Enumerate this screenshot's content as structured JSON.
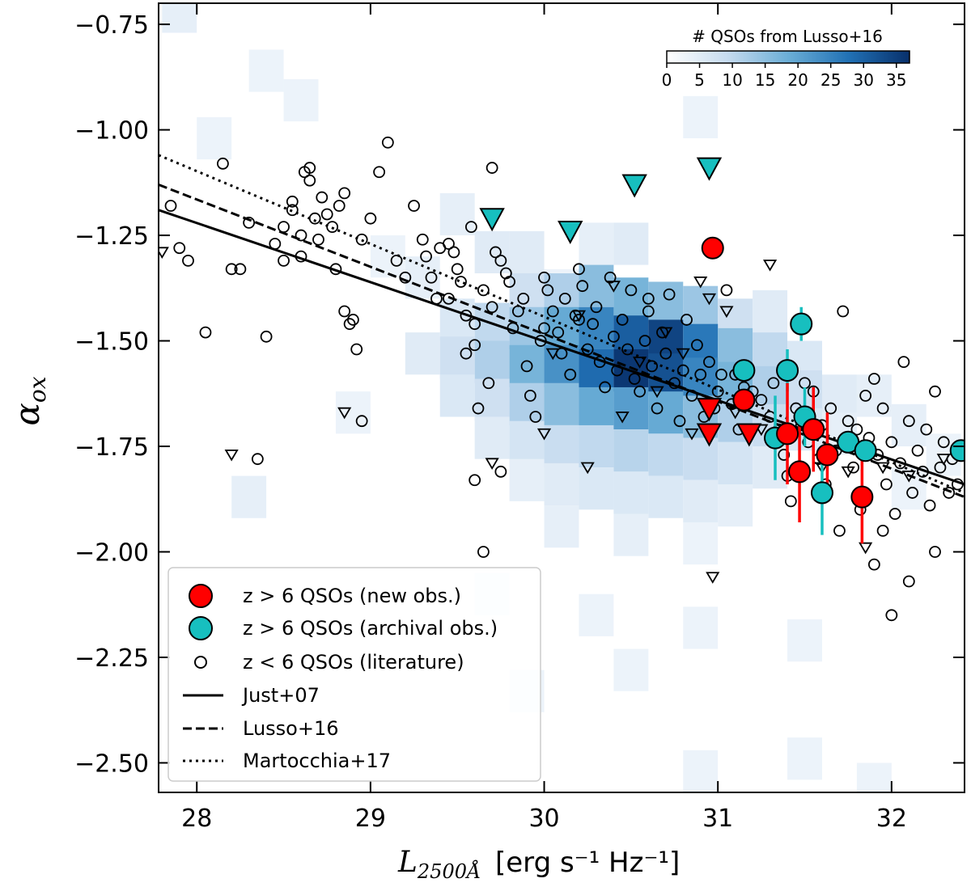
{
  "chart_data": {
    "type": "scatter",
    "title": "",
    "xlabel": {
      "main": "L",
      "sub": "2500Å",
      "unit": "[erg s⁻¹ Hz⁻¹]"
    },
    "ylabel": {
      "main": "α",
      "sub": "ox"
    },
    "xlim": [
      27.78,
      32.42
    ],
    "ylim": [
      -2.57,
      -0.7
    ],
    "xticks": [
      28,
      29,
      30,
      31,
      32
    ],
    "xtick_labels": [
      "28",
      "29",
      "30",
      "31",
      "32"
    ],
    "yticks": [
      -0.75,
      -1.0,
      -1.25,
      -1.5,
      -1.75,
      -2.0,
      -2.25,
      -2.5
    ],
    "ytick_labels": [
      "−0.75",
      "−1.00",
      "−1.25",
      "−1.50",
      "−1.75",
      "−2.00",
      "−2.25",
      "−2.50"
    ],
    "colorbar": {
      "label": "# QSOs from Lusso+16",
      "range": [
        0,
        37
      ],
      "ticks": [
        0,
        5,
        10,
        15,
        20,
        25,
        30,
        35
      ],
      "tick_labels": [
        "0",
        "5",
        "10",
        "15",
        "20",
        "25",
        "30",
        "35"
      ],
      "color_low": "#ffffff",
      "color_high": "#08306b"
    },
    "lusso16_density": [
      [
        27.9,
        -0.72,
        2
      ],
      [
        28.4,
        -0.86,
        1
      ],
      [
        28.6,
        -0.93,
        1
      ],
      [
        28.1,
        -1.02,
        1
      ],
      [
        30.9,
        -0.97,
        1
      ],
      [
        30.1,
        -1.38,
        1
      ],
      [
        30.3,
        -1.27,
        2
      ],
      [
        30.5,
        -1.27,
        3
      ],
      [
        29.9,
        -1.29,
        3
      ],
      [
        29.7,
        -1.29,
        3
      ],
      [
        29.5,
        -1.2,
        2
      ],
      [
        29.3,
        -1.35,
        2
      ],
      [
        29.1,
        -1.3,
        1
      ],
      [
        29.9,
        -1.39,
        6
      ],
      [
        30.1,
        -1.39,
        10
      ],
      [
        30.3,
        -1.37,
        14
      ],
      [
        30.5,
        -1.4,
        16
      ],
      [
        30.7,
        -1.41,
        14
      ],
      [
        30.9,
        -1.42,
        12
      ],
      [
        31.1,
        -1.45,
        6
      ],
      [
        31.3,
        -1.43,
        3
      ],
      [
        29.5,
        -1.45,
        4
      ],
      [
        29.7,
        -1.46,
        8
      ],
      [
        29.9,
        -1.47,
        12
      ],
      [
        30.1,
        -1.47,
        18
      ],
      [
        30.3,
        -1.47,
        24
      ],
      [
        30.5,
        -1.49,
        30
      ],
      [
        30.7,
        -1.5,
        34
      ],
      [
        30.9,
        -1.51,
        26
      ],
      [
        31.1,
        -1.52,
        14
      ],
      [
        31.3,
        -1.53,
        8
      ],
      [
        31.5,
        -1.55,
        4
      ],
      [
        29.3,
        -1.53,
        3
      ],
      [
        29.5,
        -1.54,
        6
      ],
      [
        29.7,
        -1.55,
        10
      ],
      [
        29.9,
        -1.56,
        16
      ],
      [
        30.1,
        -1.56,
        22
      ],
      [
        30.3,
        -1.57,
        28
      ],
      [
        30.5,
        -1.57,
        36
      ],
      [
        30.7,
        -1.58,
        32
      ],
      [
        30.9,
        -1.59,
        24
      ],
      [
        31.1,
        -1.6,
        16
      ],
      [
        31.3,
        -1.61,
        10
      ],
      [
        31.5,
        -1.62,
        6
      ],
      [
        31.7,
        -1.63,
        3
      ],
      [
        29.5,
        -1.63,
        4
      ],
      [
        29.7,
        -1.64,
        6
      ],
      [
        29.9,
        -1.65,
        10
      ],
      [
        30.1,
        -1.65,
        14
      ],
      [
        30.3,
        -1.66,
        18
      ],
      [
        30.5,
        -1.66,
        20
      ],
      [
        30.7,
        -1.67,
        18
      ],
      [
        30.9,
        -1.68,
        14
      ],
      [
        31.1,
        -1.69,
        10
      ],
      [
        31.3,
        -1.7,
        7
      ],
      [
        31.5,
        -1.71,
        4
      ],
      [
        31.7,
        -1.72,
        2
      ],
      [
        29.7,
        -1.73,
        3
      ],
      [
        29.9,
        -1.74,
        5
      ],
      [
        30.1,
        -1.75,
        7
      ],
      [
        30.3,
        -1.75,
        8
      ],
      [
        30.5,
        -1.76,
        9
      ],
      [
        30.7,
        -1.77,
        8
      ],
      [
        30.9,
        -1.78,
        7
      ],
      [
        31.1,
        -1.79,
        5
      ],
      [
        31.3,
        -1.8,
        3
      ],
      [
        29.9,
        -1.83,
        2
      ],
      [
        30.1,
        -1.84,
        3
      ],
      [
        30.3,
        -1.85,
        4
      ],
      [
        30.5,
        -1.86,
        4
      ],
      [
        30.7,
        -1.87,
        4
      ],
      [
        30.9,
        -1.88,
        3
      ],
      [
        31.1,
        -1.89,
        2
      ],
      [
        30.1,
        -1.94,
        2
      ],
      [
        30.5,
        -1.96,
        2
      ],
      [
        30.9,
        -1.98,
        1
      ],
      [
        28.9,
        -1.67,
        1
      ],
      [
        28.3,
        -1.87,
        2
      ],
      [
        29.7,
        -2.1,
        1
      ],
      [
        30.3,
        -2.15,
        1
      ],
      [
        30.9,
        -2.18,
        1
      ],
      [
        31.5,
        -2.21,
        1
      ],
      [
        30.5,
        -2.28,
        1
      ],
      [
        29.9,
        -2.33,
        1
      ],
      [
        31.5,
        -2.49,
        1
      ],
      [
        31.9,
        -2.55,
        1
      ],
      [
        30.9,
        -2.52,
        1
      ],
      [
        31.9,
        -1.63,
        2
      ],
      [
        32.1,
        -1.7,
        2
      ],
      [
        32.3,
        -1.77,
        1
      ],
      [
        32.1,
        -1.85,
        1
      ]
    ],
    "literature_z_lt_6": [
      [
        27.85,
        -1.18
      ],
      [
        27.9,
        -1.28
      ],
      [
        27.95,
        -1.31
      ],
      [
        28.05,
        -1.48
      ],
      [
        28.15,
        -1.08
      ],
      [
        28.2,
        -1.33
      ],
      [
        28.25,
        -1.33
      ],
      [
        28.3,
        -1.22
      ],
      [
        28.35,
        -1.78
      ],
      [
        28.4,
        -1.49
      ],
      [
        28.45,
        -1.27
      ],
      [
        28.5,
        -1.23
      ],
      [
        28.5,
        -1.31
      ],
      [
        28.55,
        -1.17
      ],
      [
        28.55,
        -1.19
      ],
      [
        28.6,
        -1.25
      ],
      [
        28.6,
        -1.3
      ],
      [
        28.62,
        -1.1
      ],
      [
        28.65,
        -1.12
      ],
      [
        28.65,
        -1.09
      ],
      [
        28.68,
        -1.21
      ],
      [
        28.7,
        -1.26
      ],
      [
        28.72,
        -1.16
      ],
      [
        28.75,
        -1.2
      ],
      [
        28.78,
        -1.23
      ],
      [
        28.8,
        -1.33
      ],
      [
        28.82,
        -1.18
      ],
      [
        28.85,
        -1.15
      ],
      [
        28.85,
        -1.43
      ],
      [
        28.88,
        -1.46
      ],
      [
        28.9,
        -1.45
      ],
      [
        28.92,
        -1.52
      ],
      [
        28.95,
        -1.69
      ],
      [
        28.95,
        -1.26
      ],
      [
        29.0,
        -1.21
      ],
      [
        29.05,
        -1.1
      ],
      [
        29.1,
        -1.03
      ],
      [
        29.15,
        -1.31
      ],
      [
        29.2,
        -1.35
      ],
      [
        29.25,
        -1.18
      ],
      [
        29.3,
        -1.26
      ],
      [
        29.32,
        -1.3
      ],
      [
        29.35,
        -1.35
      ],
      [
        29.38,
        -1.4
      ],
      [
        29.4,
        -1.28
      ],
      [
        29.45,
        -1.27
      ],
      [
        29.45,
        -1.4
      ],
      [
        29.48,
        -1.29
      ],
      [
        29.5,
        -1.33
      ],
      [
        29.52,
        -1.36
      ],
      [
        29.55,
        -1.53
      ],
      [
        29.55,
        -1.44
      ],
      [
        29.58,
        -1.23
      ],
      [
        29.6,
        -1.46
      ],
      [
        29.6,
        -1.51
      ],
      [
        29.62,
        -1.66
      ],
      [
        29.65,
        -1.38
      ],
      [
        29.68,
        -1.6
      ],
      [
        29.7,
        -1.09
      ],
      [
        29.7,
        -1.42
      ],
      [
        29.72,
        -1.29
      ],
      [
        29.75,
        -1.31
      ],
      [
        29.78,
        -1.34
      ],
      [
        29.8,
        -1.36
      ],
      [
        29.82,
        -1.47
      ],
      [
        29.85,
        -1.43
      ],
      [
        29.88,
        -1.4
      ],
      [
        29.9,
        -1.56
      ],
      [
        29.92,
        -1.63
      ],
      [
        29.95,
        -1.68
      ],
      [
        29.98,
        -1.5
      ],
      [
        30.0,
        -1.35
      ],
      [
        30.0,
        -1.47
      ],
      [
        30.02,
        -1.38
      ],
      [
        30.05,
        -1.43
      ],
      [
        30.08,
        -1.48
      ],
      [
        30.1,
        -1.53
      ],
      [
        30.12,
        -1.4
      ],
      [
        30.15,
        -1.58
      ],
      [
        30.18,
        -1.44
      ],
      [
        30.2,
        -1.33
      ],
      [
        30.22,
        -1.37
      ],
      [
        30.25,
        -1.52
      ],
      [
        30.28,
        -1.46
      ],
      [
        30.3,
        -1.42
      ],
      [
        30.32,
        -1.55
      ],
      [
        30.35,
        -1.61
      ],
      [
        30.38,
        -1.35
      ],
      [
        30.4,
        -1.49
      ],
      [
        30.42,
        -1.57
      ],
      [
        30.45,
        -1.45
      ],
      [
        30.48,
        -1.52
      ],
      [
        30.5,
        -1.38
      ],
      [
        30.52,
        -1.59
      ],
      [
        30.55,
        -1.62
      ],
      [
        30.58,
        -1.5
      ],
      [
        30.6,
        -1.43
      ],
      [
        30.62,
        -1.56
      ],
      [
        30.65,
        -1.66
      ],
      [
        30.68,
        -1.48
      ],
      [
        30.7,
        -1.53
      ],
      [
        30.72,
        -1.39
      ],
      [
        30.75,
        -1.6
      ],
      [
        30.78,
        -1.69
      ],
      [
        30.8,
        -1.57
      ],
      [
        30.82,
        -1.45
      ],
      [
        30.85,
        -1.63
      ],
      [
        30.88,
        -1.51
      ],
      [
        30.9,
        -1.58
      ],
      [
        30.92,
        -1.68
      ],
      [
        30.95,
        -1.55
      ],
      [
        30.98,
        -1.66
      ],
      [
        31.0,
        -1.62
      ],
      [
        31.02,
        -1.58
      ],
      [
        31.05,
        -1.38
      ],
      [
        31.08,
        -1.65
      ],
      [
        31.1,
        -1.58
      ],
      [
        31.12,
        -1.71
      ],
      [
        31.15,
        -1.61
      ],
      [
        31.2,
        -1.62
      ],
      [
        31.25,
        -1.64
      ],
      [
        31.3,
        -1.68
      ],
      [
        31.32,
        -1.6
      ],
      [
        31.35,
        -1.71
      ],
      [
        31.38,
        -1.77
      ],
      [
        31.4,
        -1.82
      ],
      [
        31.42,
        -1.88
      ],
      [
        31.45,
        -1.66
      ],
      [
        31.48,
        -1.7
      ],
      [
        31.5,
        -1.6
      ],
      [
        31.52,
        -1.74
      ],
      [
        31.55,
        -1.62
      ],
      [
        31.58,
        -1.78
      ],
      [
        31.6,
        -1.7
      ],
      [
        31.62,
        -1.84
      ],
      [
        31.65,
        -1.66
      ],
      [
        31.68,
        -1.76
      ],
      [
        31.7,
        -1.95
      ],
      [
        31.72,
        -1.43
      ],
      [
        31.75,
        -1.69
      ],
      [
        31.78,
        -1.8
      ],
      [
        31.8,
        -1.71
      ],
      [
        31.82,
        -1.9
      ],
      [
        31.85,
        -1.63
      ],
      [
        31.87,
        -1.73
      ],
      [
        31.9,
        -1.59
      ],
      [
        31.92,
        -1.77
      ],
      [
        31.95,
        -1.66
      ],
      [
        31.97,
        -1.84
      ],
      [
        32.0,
        -1.74
      ],
      [
        32.02,
        -1.91
      ],
      [
        32.05,
        -1.79
      ],
      [
        32.07,
        -1.55
      ],
      [
        32.1,
        -1.69
      ],
      [
        32.12,
        -1.86
      ],
      [
        32.15,
        -1.76
      ],
      [
        32.18,
        -1.81
      ],
      [
        32.2,
        -1.71
      ],
      [
        32.22,
        -1.89
      ],
      [
        32.25,
        -1.62
      ],
      [
        32.28,
        -1.8
      ],
      [
        32.3,
        -1.74
      ],
      [
        32.33,
        -1.86
      ],
      [
        32.35,
        -1.78
      ],
      [
        32.38,
        -1.84
      ],
      [
        31.9,
        -2.03
      ],
      [
        32.0,
        -2.15
      ],
      [
        32.1,
        -2.07
      ],
      [
        32.25,
        -2.0
      ],
      [
        31.95,
        -1.95
      ],
      [
        29.65,
        -2.0
      ],
      [
        29.6,
        -1.83
      ],
      [
        29.75,
        -1.81
      ],
      [
        30.2,
        -1.45
      ],
      [
        30.6,
        -1.4
      ]
    ],
    "literature_z_lt_6_upper_limits": [
      [
        27.8,
        -1.29
      ],
      [
        28.2,
        -1.77
      ],
      [
        28.85,
        -1.67
      ],
      [
        29.7,
        -1.79
      ],
      [
        30.05,
        -1.53
      ],
      [
        30.2,
        -1.44
      ],
      [
        30.0,
        -1.72
      ],
      [
        30.25,
        -1.8
      ],
      [
        30.45,
        -1.68
      ],
      [
        30.55,
        -1.55
      ],
      [
        30.65,
        -1.62
      ],
      [
        30.7,
        -1.48
      ],
      [
        30.8,
        -1.53
      ],
      [
        30.85,
        -1.72
      ],
      [
        30.95,
        -1.4
      ],
      [
        31.05,
        -1.43
      ],
      [
        31.1,
        -1.67
      ],
      [
        31.3,
        -1.32
      ],
      [
        30.97,
        -2.06
      ],
      [
        31.25,
        -1.71
      ],
      [
        31.6,
        -1.8
      ],
      [
        31.75,
        -1.81
      ],
      [
        31.85,
        -1.99
      ],
      [
        31.95,
        -1.8
      ],
      [
        32.1,
        -1.82
      ],
      [
        32.3,
        -1.78
      ],
      [
        30.4,
        -1.37
      ],
      [
        30.9,
        -1.36
      ],
      [
        31.4,
        -1.72
      ]
    ],
    "new_obs_z_gt_6": [
      {
        "x": 30.97,
        "y": -1.28,
        "err": 0.0
      },
      {
        "x": 31.15,
        "y": -1.64,
        "err": 0.0
      },
      {
        "x": 31.4,
        "y": -1.72,
        "err": 0.12
      },
      {
        "x": 31.47,
        "y": -1.81,
        "err": 0.12
      },
      {
        "x": 31.55,
        "y": -1.71,
        "err": 0.1
      },
      {
        "x": 31.63,
        "y": -1.77,
        "err": 0.1
      },
      {
        "x": 31.83,
        "y": -1.87,
        "err": 0.11
      }
    ],
    "new_obs_z_gt_6_upper_limits": [
      [
        30.95,
        -1.66
      ],
      [
        30.95,
        -1.72
      ],
      [
        31.18,
        -1.72
      ]
    ],
    "archival_obs_z_gt_6": [
      {
        "x": 31.15,
        "y": -1.57,
        "err": 0.0
      },
      {
        "x": 31.33,
        "y": -1.73,
        "err": 0.1
      },
      {
        "x": 31.4,
        "y": -1.57,
        "err": 0.05
      },
      {
        "x": 31.48,
        "y": -1.46,
        "err": 0.04
      },
      {
        "x": 31.5,
        "y": -1.68,
        "err": 0.07
      },
      {
        "x": 31.6,
        "y": -1.86,
        "err": 0.1
      },
      {
        "x": 31.75,
        "y": -1.74,
        "err": 0.0
      },
      {
        "x": 31.85,
        "y": -1.76,
        "err": 0.0
      },
      {
        "x": 32.4,
        "y": -1.76,
        "err": 0.0
      }
    ],
    "archival_obs_z_gt_6_upper_limits": [
      [
        29.7,
        -1.21
      ],
      [
        30.15,
        -1.24
      ],
      [
        30.52,
        -1.13
      ],
      [
        30.95,
        -1.09
      ]
    ],
    "fits": [
      {
        "name": "Just+07",
        "style": "solid",
        "x": [
          27.78,
          32.42
        ],
        "y": [
          -1.19,
          -1.84
        ]
      },
      {
        "name": "Lusso+16",
        "style": "dashed",
        "x": [
          27.78,
          32.42
        ],
        "y": [
          -1.13,
          -1.87
        ]
      },
      {
        "name": "Martocchia+17",
        "style": "dotted",
        "x": [
          27.78,
          32.42
        ],
        "y": [
          -1.06,
          -1.86
        ]
      }
    ],
    "legend": {
      "position": "lower-left",
      "entries": [
        {
          "key": "new",
          "label": "z > 6 QSOs (new obs.)"
        },
        {
          "key": "archival",
          "label": "z > 6 QSOs (archival obs.)"
        },
        {
          "key": "literature",
          "label": "z < 6 QSOs (literature)"
        },
        {
          "key": "just07",
          "label": "Just+07"
        },
        {
          "key": "lusso16",
          "label": "Lusso+16"
        },
        {
          "key": "martocchia17",
          "label": "Martocchia+17"
        }
      ]
    },
    "colors": {
      "new": "#ff0000",
      "archival": "#17bfbf",
      "literature": "#000000"
    }
  }
}
